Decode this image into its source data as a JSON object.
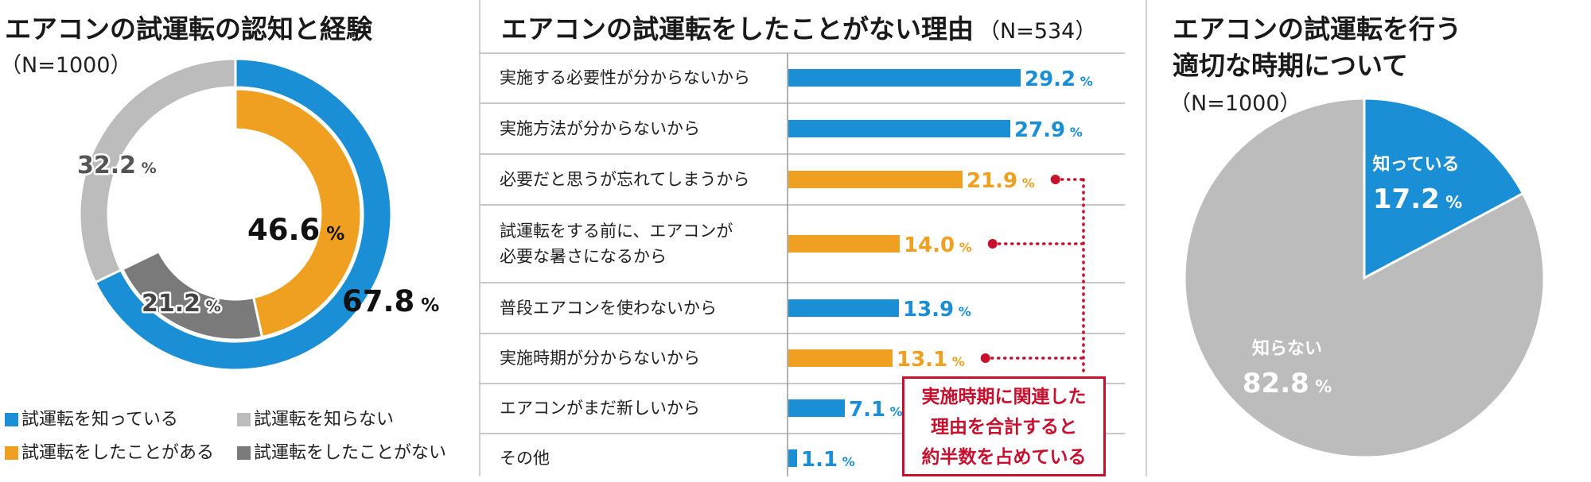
{
  "panels": {
    "p1": {
      "title": "エアコンの試運転の認知と経験",
      "subtitle": "（N=1000）"
    },
    "p2": {
      "title": "エアコンの試運転をしたことがない理由",
      "sample": "（N=534）"
    },
    "p3": {
      "title_line1": "エアコンの試運転を行う",
      "title_line2": "適切な時期について",
      "subtitle": "（N=1000）"
    }
  },
  "annotation": {
    "line1": "実施時期に関連した",
    "line2": "理由を合計すると",
    "line3": "約半数を占めている"
  },
  "colors": {
    "blue": "#1a8fd6",
    "orange": "#f0a020",
    "lightgray": "#bcbcbc",
    "darkgray": "#7a7a7a",
    "red": "#c8102e"
  },
  "chart_data": [
    {
      "type": "pie",
      "variant": "nested-donut",
      "title": "エアコンの試運転の認知と経験",
      "subtitle": "（N=1000）",
      "unit": "%",
      "outer": [
        {
          "label": "試運転を知っている",
          "value": 67.8,
          "value_text": "67.8",
          "color": "#1a8fd6"
        },
        {
          "label": "試運転を知らない",
          "value": 32.2,
          "value_text": "32.2",
          "color": "#bcbcbc"
        }
      ],
      "inner": [
        {
          "label": "試運転をしたことがある",
          "value": 46.6,
          "value_text": "46.6",
          "color": "#f0a020"
        },
        {
          "label": "試運転をしたことがない",
          "value": 21.2,
          "value_text": "21.2",
          "color": "#7a7a7a"
        }
      ],
      "legend": [
        {
          "label": "試運転を知っている",
          "color": "#1a8fd6"
        },
        {
          "label": "試運転を知らない",
          "color": "#bcbcbc"
        },
        {
          "label": "試運転をしたことがある",
          "color": "#f0a020"
        },
        {
          "label": "試運転をしたことがない",
          "color": "#7a7a7a"
        }
      ]
    },
    {
      "type": "bar",
      "orientation": "horizontal",
      "title": "エアコンの試運転をしたことがない理由",
      "subtitle": "（N=534）",
      "unit": "%",
      "xlim": [
        0,
        40
      ],
      "bars": [
        {
          "lines": [
            "実施する必要性が分からないから"
          ],
          "value": 29.2,
          "value_text": "29.2",
          "color": "#1a8fd6",
          "highlight": false
        },
        {
          "lines": [
            "実施方法が分からないから"
          ],
          "value": 27.9,
          "value_text": "27.9",
          "color": "#1a8fd6",
          "highlight": false
        },
        {
          "lines": [
            "必要だと思うが忘れてしまうから"
          ],
          "value": 21.9,
          "value_text": "21.9",
          "color": "#f0a020",
          "highlight": true
        },
        {
          "lines": [
            "試運転をする前に、エアコンが",
            "必要な暑さになるから"
          ],
          "value": 14.0,
          "value_text": "14.0",
          "color": "#f0a020",
          "highlight": true
        },
        {
          "lines": [
            "普段エアコンを使わないから"
          ],
          "value": 13.9,
          "value_text": "13.9",
          "color": "#1a8fd6",
          "highlight": false
        },
        {
          "lines": [
            "実施時期が分からないから"
          ],
          "value": 13.1,
          "value_text": "13.1",
          "color": "#f0a020",
          "highlight": true
        },
        {
          "lines": [
            "エアコンがまだ新しいから"
          ],
          "value": 7.1,
          "value_text": "7.1",
          "color": "#1a8fd6",
          "highlight": false
        },
        {
          "lines": [
            "その他"
          ],
          "value": 1.1,
          "value_text": "1.1",
          "color": "#1a8fd6",
          "highlight": false
        }
      ]
    },
    {
      "type": "pie",
      "title": "エアコンの試運転を行う適切な時期について",
      "subtitle": "（N=1000）",
      "unit": "%",
      "slices": [
        {
          "label": "知っている",
          "value": 17.2,
          "value_text": "17.2",
          "color": "#1a8fd6"
        },
        {
          "label": "知らない",
          "value": 82.8,
          "value_text": "82.8",
          "color": "#bcbcbc"
        }
      ]
    }
  ]
}
